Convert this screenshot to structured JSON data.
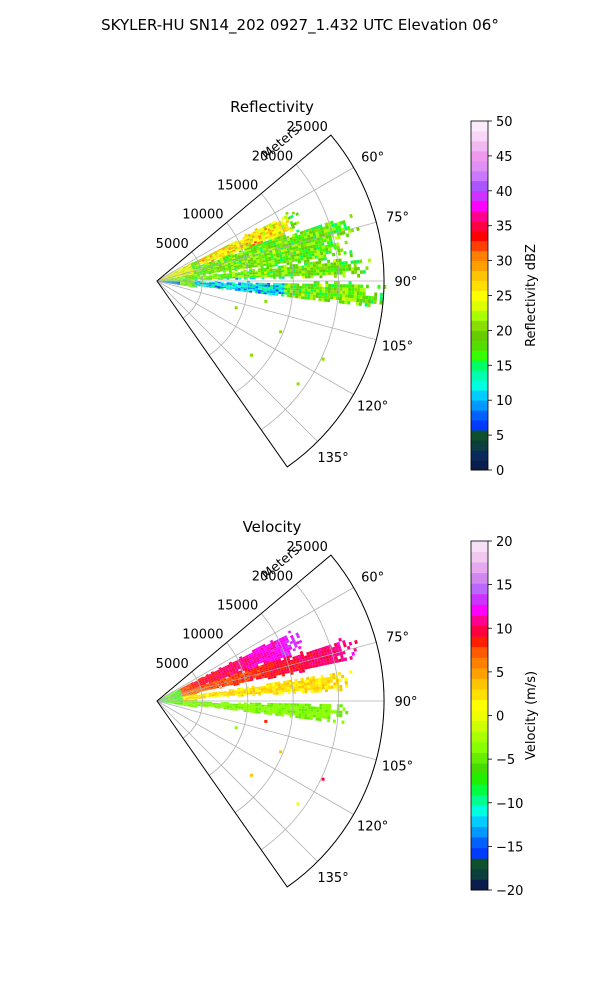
{
  "figure": {
    "title": "SKYLER-HU  SN14_202  0927_1.432 UTC Elevation 06°"
  },
  "chart_data": [
    {
      "type": "polar-sector",
      "title": "Reflectivity",
      "range_label": "Meters",
      "range_ticks": [
        5000,
        10000,
        15000,
        20000,
        25000
      ],
      "range_max": 25000,
      "azimuth_range": [
        50,
        145
      ],
      "azimuth_ticks": [
        60,
        75,
        90,
        105,
        120,
        135
      ],
      "azimuth_tick_labels": [
        "60°",
        "75°",
        "90°",
        "105°",
        "120°",
        "135°"
      ],
      "range_tick_labels": [
        "5000",
        "10000",
        "15000",
        "20000",
        "25000"
      ],
      "grid": true,
      "field_pattern": "reflectivity",
      "colorbar": {
        "label": "Reflectivity dBZ",
        "min": 0,
        "max": 50,
        "ticks": [
          0,
          5,
          10,
          15,
          20,
          25,
          30,
          35,
          40,
          45,
          50
        ],
        "tick_labels": [
          "0",
          "5",
          "10",
          "15",
          "20",
          "25",
          "30",
          "35",
          "40",
          "45",
          "50"
        ],
        "colors": [
          "#0b1d4d",
          "#0a2a5a",
          "#0c3e3e",
          "#0e4f2e",
          "#003cff",
          "#0061ff",
          "#0099ff",
          "#00ccff",
          "#00ffe0",
          "#00ffb0",
          "#00ff66",
          "#33ff00",
          "#55dd00",
          "#66cc00",
          "#88e000",
          "#aaff00",
          "#ddff00",
          "#ffff00",
          "#ffe000",
          "#ffc400",
          "#ffa000",
          "#ff7f00",
          "#ff4000",
          "#ff0000",
          "#ff0044",
          "#ff0090",
          "#ff00ff",
          "#cc33ff",
          "#aa55ff",
          "#cc77ff",
          "#e090f5",
          "#ee99ee",
          "#f2b8f2",
          "#f7d6f7",
          "#fbeafb"
        ]
      }
    },
    {
      "type": "polar-sector",
      "title": "Velocity",
      "range_label": "Meters",
      "range_ticks": [
        5000,
        10000,
        15000,
        20000,
        25000
      ],
      "range_max": 25000,
      "azimuth_range": [
        50,
        145
      ],
      "azimuth_ticks": [
        60,
        75,
        90,
        105,
        120,
        135
      ],
      "azimuth_tick_labels": [
        "60°",
        "75°",
        "90°",
        "105°",
        "120°",
        "135°"
      ],
      "range_tick_labels": [
        "5000",
        "10000",
        "15000",
        "20000",
        "25000"
      ],
      "grid": true,
      "field_pattern": "velocity",
      "colorbar": {
        "label": "Velocity (m/s)",
        "min": -20,
        "max": 20,
        "ticks": [
          -20,
          -15,
          -10,
          -5,
          0,
          5,
          10,
          15,
          20
        ],
        "tick_labels": [
          "−20",
          "−15",
          "−10",
          "−5",
          "0",
          "5",
          "10",
          "15",
          "20"
        ],
        "colors": [
          "#0b1d4d",
          "#0c3e3e",
          "#0e4f2e",
          "#003cff",
          "#0061ff",
          "#0099ff",
          "#00ccff",
          "#00ffe0",
          "#00ff90",
          "#00ff40",
          "#22ee00",
          "#44dd00",
          "#66ee00",
          "#88ff00",
          "#aaff00",
          "#ccff00",
          "#eeff00",
          "#ffff00",
          "#ffe000",
          "#ffc400",
          "#ffa000",
          "#ff7f00",
          "#ff5a00",
          "#ff2000",
          "#ff0040",
          "#ff0090",
          "#ff00ff",
          "#cc33ff",
          "#bb66ff",
          "#d188ee",
          "#e6a8ee",
          "#f0c8f0",
          "#f7e0f7"
        ]
      }
    }
  ]
}
